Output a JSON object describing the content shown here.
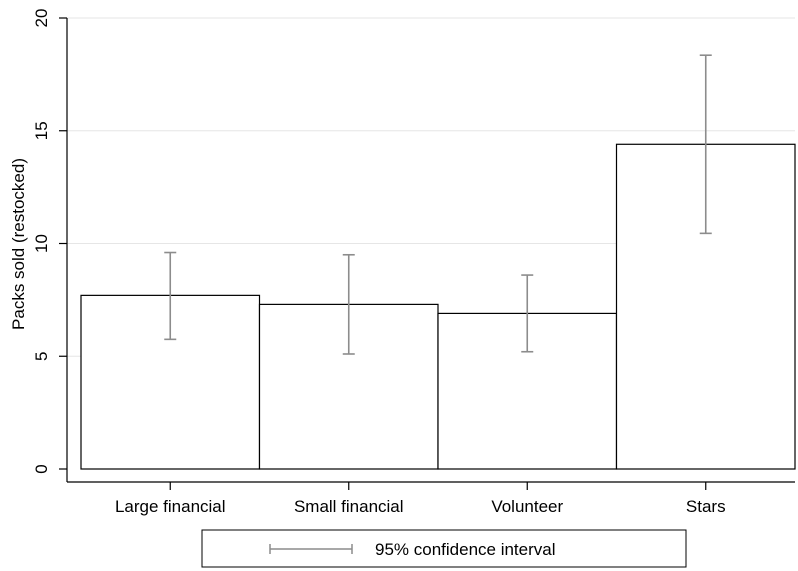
{
  "chart_data": {
    "type": "bar",
    "categories": [
      "Large financial",
      "Small financial",
      "Volunteer",
      "Stars"
    ],
    "series": [
      {
        "values": [
          7.7,
          7.3,
          6.9,
          14.4
        ],
        "ci_low": [
          5.75,
          5.1,
          5.2,
          10.45
        ],
        "ci_high": [
          9.6,
          9.5,
          8.6,
          18.35
        ]
      }
    ],
    "ylabel": "Packs sold (restocked)",
    "xlabel": "",
    "title": "",
    "ylim": [
      0,
      20
    ],
    "yticks": [
      0,
      5,
      10,
      15,
      20
    ],
    "grid": true,
    "legend": {
      "placement": "bottom-center",
      "entries": [
        "95% confidence interval"
      ]
    },
    "colors": {
      "bar_fill": "#ffffff",
      "bar_stroke": "#000000",
      "error_bar": "#8c8c8c",
      "grid": "#e6e6e6"
    }
  }
}
